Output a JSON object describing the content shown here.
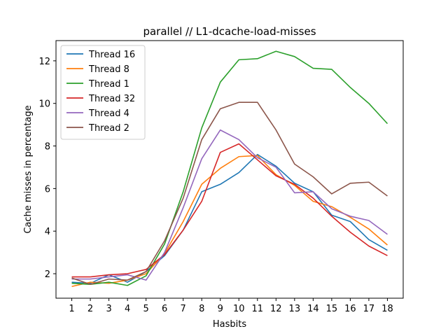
{
  "chart_data": {
    "type": "line",
    "title": "parallel // L1-dcache-load-misses",
    "xlabel": "Hasbits",
    "ylabel": "Cache misses in percentage",
    "x": [
      1,
      2,
      3,
      4,
      5,
      6,
      7,
      8,
      9,
      10,
      11,
      12,
      13,
      14,
      15,
      16,
      17,
      18
    ],
    "xlim": [
      0.15,
      18.85
    ],
    "ylim": [
      0.85,
      12.95
    ],
    "yticks": [
      2,
      4,
      6,
      8,
      10,
      12
    ],
    "grid": false,
    "legend_position": "upper-left",
    "series": [
      {
        "name": "Thread 16",
        "color": "#1f77b4",
        "values": [
          1.6,
          1.55,
          1.95,
          1.6,
          2.1,
          2.85,
          4.05,
          5.85,
          6.2,
          6.75,
          7.6,
          7.05,
          6.25,
          5.85,
          4.75,
          4.45,
          3.6,
          3.1
        ]
      },
      {
        "name": "Thread 8",
        "color": "#ff7f0e",
        "values": [
          1.4,
          1.6,
          1.55,
          1.7,
          2.0,
          2.95,
          4.45,
          6.2,
          6.95,
          7.5,
          7.55,
          6.65,
          6.15,
          5.4,
          5.15,
          4.65,
          4.1,
          3.35
        ]
      },
      {
        "name": "Thread 1",
        "color": "#2ca02c",
        "values": [
          1.55,
          1.5,
          1.6,
          1.45,
          1.9,
          3.4,
          5.85,
          8.85,
          11.0,
          12.05,
          12.1,
          12.45,
          12.2,
          11.65,
          11.6,
          10.75,
          10.0,
          9.05
        ]
      },
      {
        "name": "Thread 32",
        "color": "#d62728",
        "values": [
          1.85,
          1.85,
          1.95,
          2.0,
          2.2,
          2.9,
          4.05,
          5.4,
          7.7,
          8.1,
          7.35,
          6.6,
          6.2,
          5.55,
          4.7,
          3.95,
          3.3,
          2.85
        ]
      },
      {
        "name": "Thread 4",
        "color": "#9467bd",
        "values": [
          1.75,
          1.75,
          1.85,
          1.95,
          1.7,
          3.0,
          5.1,
          7.4,
          8.75,
          8.3,
          7.45,
          7.0,
          5.8,
          5.85,
          5.05,
          4.7,
          4.5,
          3.85
        ]
      },
      {
        "name": "Thread 2",
        "color": "#8c564b",
        "values": [
          1.8,
          1.5,
          1.75,
          1.7,
          2.1,
          3.55,
          5.55,
          8.3,
          9.75,
          10.05,
          10.05,
          8.75,
          7.15,
          6.55,
          5.75,
          6.25,
          6.3,
          5.65
        ]
      }
    ]
  }
}
